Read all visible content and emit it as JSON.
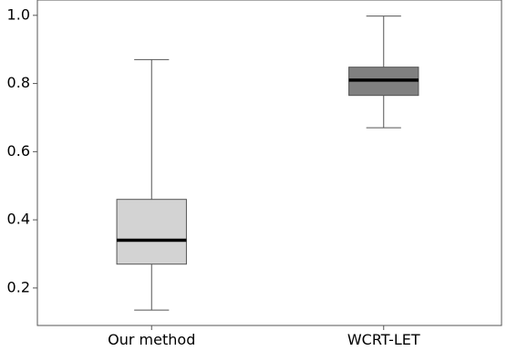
{
  "chart_data": {
    "type": "box",
    "title": "",
    "xlabel": "",
    "ylabel": "",
    "categories": [
      "Our method",
      "WCRT-LET"
    ],
    "ylim": [
      0.09,
      1.045
    ],
    "y_ticks": [
      "1.0",
      "0.8",
      "0.6",
      "0.4",
      "0.2"
    ],
    "grid": false,
    "boxes": [
      {
        "name": "Our method",
        "whisker_low": 0.135,
        "q1": 0.27,
        "median": 0.34,
        "q3": 0.46,
        "whisker_high": 0.87,
        "color": "#d3d3d3"
      },
      {
        "name": "WCRT-LET",
        "whisker_low": 0.67,
        "q1": 0.765,
        "median": 0.81,
        "q3": 0.848,
        "whisker_high": 0.998,
        "color": "#808080"
      }
    ]
  }
}
